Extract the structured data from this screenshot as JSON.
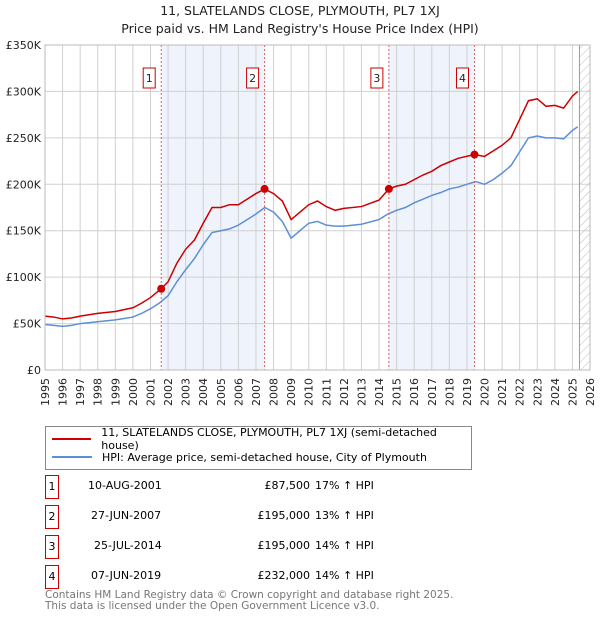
{
  "title": "11, SLATELANDS CLOSE, PLYMOUTH, PL7 1XJ",
  "subtitle": "Price paid vs. HM Land Registry's House Price Index (HPI)",
  "chart_data": {
    "type": "line",
    "title": "11, SLATELANDS CLOSE, PLYMOUTH, PL7 1XJ",
    "xlim": [
      1995,
      2026
    ],
    "ylim": [
      0,
      350000
    ],
    "x_ticks": [
      "1995",
      "1996",
      "1997",
      "1998",
      "1999",
      "2000",
      "2001",
      "2002",
      "2003",
      "2004",
      "2005",
      "2006",
      "2007",
      "2008",
      "2009",
      "2010",
      "2011",
      "2012",
      "2013",
      "2014",
      "2015",
      "2016",
      "2017",
      "2018",
      "2019",
      "2020",
      "2021",
      "2022",
      "2023",
      "2024",
      "2025",
      "2026"
    ],
    "y_ticks": [
      {
        "v": 0,
        "label": "£0"
      },
      {
        "v": 50000,
        "label": "£50K"
      },
      {
        "v": 100000,
        "label": "£100K"
      },
      {
        "v": 150000,
        "label": "£150K"
      },
      {
        "v": 200000,
        "label": "£200K"
      },
      {
        "v": 250000,
        "label": "£250K"
      },
      {
        "v": 300000,
        "label": "£300K"
      },
      {
        "v": 350000,
        "label": "£350K"
      }
    ],
    "grid": true,
    "shaded_spans": [
      [
        2001.61,
        2007.49
      ],
      [
        2014.56,
        2019.43
      ]
    ],
    "forecast_start": 2025.4,
    "series": [
      {
        "name": "11, SLATELANDS CLOSE, PLYMOUTH, PL7 1XJ (semi-detached house)",
        "color": "#cc0000",
        "x": [
          1995,
          1995.5,
          1996,
          1996.5,
          1997,
          1998,
          1999,
          2000,
          2000.5,
          2001,
          2001.61,
          2002,
          2002.5,
          2003,
          2003.5,
          2004,
          2004.5,
          2005,
          2005.5,
          2006,
          2006.5,
          2007,
          2007.49,
          2008,
          2008.5,
          2009,
          2009.5,
          2010,
          2010.5,
          2011,
          2011.5,
          2012,
          2013,
          2014,
          2014.56,
          2015,
          2015.5,
          2016,
          2016.5,
          2017,
          2017.5,
          2018,
          2018.5,
          2019.43,
          2020,
          2020.5,
          2021,
          2021.5,
          2022,
          2022.5,
          2023,
          2023.5,
          2024,
          2024.5,
          2025,
          2025.3
        ],
        "y": [
          58000,
          57000,
          55000,
          56000,
          58000,
          61000,
          63000,
          67000,
          72000,
          78000,
          87500,
          95000,
          115000,
          130000,
          140000,
          158000,
          175000,
          175000,
          178000,
          178000,
          184000,
          190000,
          195000,
          190000,
          182000,
          162000,
          170000,
          178000,
          182000,
          176000,
          172000,
          174000,
          176000,
          183000,
          195000,
          198000,
          200000,
          205000,
          210000,
          214000,
          220000,
          224000,
          228000,
          232000,
          230000,
          236000,
          242000,
          250000,
          270000,
          290000,
          292000,
          284000,
          285000,
          282000,
          295000,
          300000
        ]
      },
      {
        "name": "HPI: Average price, semi-detached house, City of Plymouth",
        "color": "#5b8fd6",
        "x": [
          1995,
          1995.5,
          1996,
          1996.5,
          1997,
          1998,
          1999,
          2000,
          2000.5,
          2001,
          2001.5,
          2002,
          2002.5,
          2003,
          2003.5,
          2004,
          2004.5,
          2005,
          2005.5,
          2006,
          2006.5,
          2007,
          2007.5,
          2008,
          2008.5,
          2009,
          2009.5,
          2010,
          2010.5,
          2011,
          2011.5,
          2012,
          2013,
          2014,
          2014.5,
          2015,
          2015.5,
          2016,
          2016.5,
          2017,
          2017.5,
          2018,
          2018.5,
          2019,
          2019.5,
          2020,
          2020.5,
          2021,
          2021.5,
          2022,
          2022.5,
          2023,
          2023.5,
          2024,
          2024.5,
          2025,
          2025.3
        ],
        "y": [
          49000,
          48000,
          47000,
          48000,
          50000,
          52000,
          54000,
          57000,
          61000,
          66000,
          72000,
          80000,
          95000,
          108000,
          120000,
          135000,
          148000,
          150000,
          152000,
          156000,
          162000,
          168000,
          175000,
          170000,
          160000,
          142000,
          150000,
          158000,
          160000,
          156000,
          155000,
          155000,
          157000,
          162000,
          168000,
          172000,
          175000,
          180000,
          184000,
          188000,
          191000,
          195000,
          197000,
          200000,
          203000,
          200000,
          205000,
          212000,
          220000,
          235000,
          250000,
          252000,
          250000,
          250000,
          249000,
          258000,
          262000
        ]
      }
    ],
    "sales": [
      {
        "n": "1",
        "x": 2001.61,
        "price": 87500
      },
      {
        "n": "2",
        "x": 2007.49,
        "price": 195000
      },
      {
        "n": "3",
        "x": 2014.56,
        "price": 195000
      },
      {
        "n": "4",
        "x": 2019.43,
        "price": 232000
      }
    ]
  },
  "legend": [
    {
      "label": "11, SLATELANDS CLOSE, PLYMOUTH, PL7 1XJ (semi-detached house)",
      "color": "#cc0000"
    },
    {
      "label": "HPI: Average price, semi-detached house, City of Plymouth",
      "color": "#5b8fd6"
    }
  ],
  "transactions": [
    {
      "n": "1",
      "date": "10-AUG-2001",
      "price": "£87,500",
      "delta": "17% ↑ HPI"
    },
    {
      "n": "2",
      "date": "27-JUN-2007",
      "price": "£195,000",
      "delta": "13% ↑ HPI"
    },
    {
      "n": "3",
      "date": "25-JUL-2014",
      "price": "£195,000",
      "delta": "14% ↑ HPI"
    },
    {
      "n": "4",
      "date": "07-JUN-2019",
      "price": "£232,000",
      "delta": "14% ↑ HPI"
    }
  ],
  "footer": [
    "Contains HM Land Registry data © Crown copyright and database right 2025.",
    "This data is licensed under the Open Government Licence v3.0."
  ]
}
